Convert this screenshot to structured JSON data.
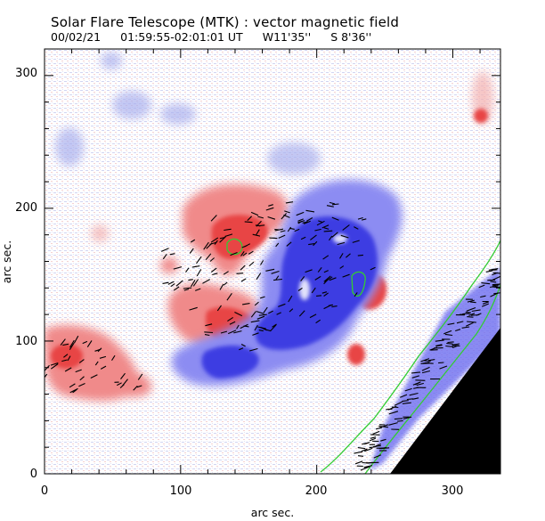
{
  "header": {
    "title": "Solar Flare Telescope (MTK) : vector magnetic field",
    "date": "00/02/21",
    "time_range": "01:59:55-02:01:01 UT",
    "lon": "W11'35''",
    "lat": "S 8'36''"
  },
  "axes": {
    "xlabel": "arc sec.",
    "ylabel": "arc sec.",
    "xlim": [
      0,
      335
    ],
    "ylim": [
      0,
      320
    ],
    "xticks": [
      0,
      100,
      200,
      300
    ],
    "yticks": [
      0,
      100,
      200,
      300
    ]
  },
  "colors": {
    "positive_field": "#e84040",
    "negative_field": "#3a3ae0",
    "contour": "#33cc33",
    "vectors": "#000000",
    "limb": "#000000"
  }
}
